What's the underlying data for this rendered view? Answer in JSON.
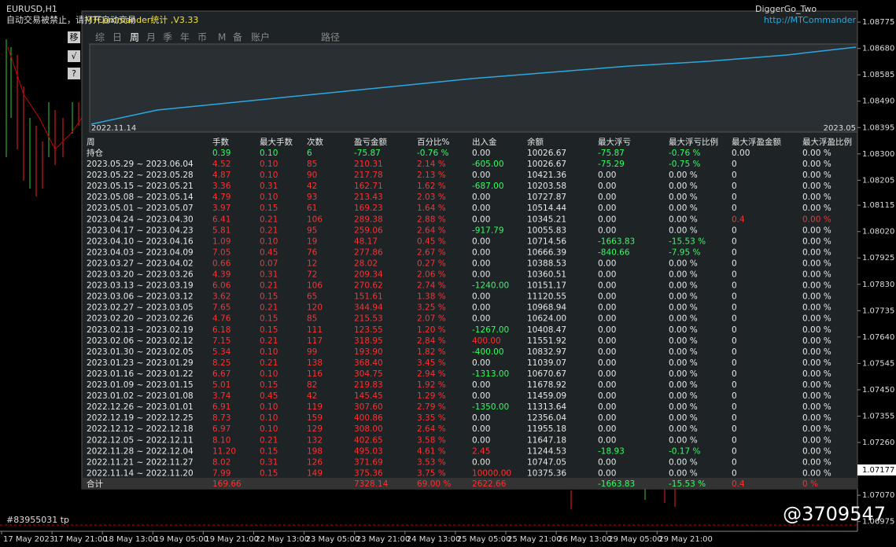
{
  "symbol": "EURUSD,H1",
  "warning": "自动交易被禁止，请打开自动交易",
  "panel": {
    "title": "MTCommander统计 ,V3.33",
    "link": "http://MTCommander",
    "ea": "DiggerGo_Two",
    "side_buttons": [
      "移",
      "√",
      "?"
    ],
    "tabs": [
      "综",
      "日",
      "周",
      "月",
      "季",
      "年",
      "币",
      "M",
      "备",
      "账户",
      "路径"
    ],
    "curve_start": "2022.11.14",
    "curve_end": "2023.05"
  },
  "table": {
    "header": [
      "周",
      "手数",
      "最大手数",
      "次数",
      "盈亏金额",
      "百分比%",
      "出入金",
      "余额",
      "最大浮亏",
      "最大浮亏比例",
      "最大浮盈金额",
      "最大浮盈比例"
    ],
    "position": [
      "持仓",
      "0.39",
      "0.10",
      "6",
      "-75.87",
      "-0.76 %",
      "0.00",
      "10026.67",
      "-75.87",
      "-0.76 %",
      "0.00",
      "0.00 %"
    ],
    "rows": [
      [
        "2023.05.29 ~ 2023.06.04",
        "4.52",
        "0.10",
        "85",
        "210.31",
        "2.14 %",
        "-605.00",
        "10026.67",
        "-75.29",
        "-0.75 %",
        "0",
        "0.00 %"
      ],
      [
        "2023.05.22 ~ 2023.05.28",
        "4.87",
        "0.10",
        "90",
        "217.78",
        "2.13 %",
        "0.00",
        "10421.36",
        "0.00",
        "0.00 %",
        "0",
        "0.00 %"
      ],
      [
        "2023.05.15 ~ 2023.05.21",
        "3.36",
        "0.31",
        "42",
        "162.71",
        "1.62 %",
        "-687.00",
        "10203.58",
        "0.00",
        "0.00 %",
        "0",
        "0.00 %"
      ],
      [
        "2023.05.08 ~ 2023.05.14",
        "4.79",
        "0.10",
        "93",
        "213.43",
        "2.03 %",
        "0.00",
        "10727.87",
        "0.00",
        "0.00 %",
        "0",
        "0.00 %"
      ],
      [
        "2023.05.01 ~ 2023.05.07",
        "3.97",
        "0.15",
        "61",
        "169.23",
        "1.64 %",
        "0.00",
        "10514.44",
        "0.00",
        "0.00 %",
        "0",
        "0.00 %"
      ],
      [
        "2023.04.24 ~ 2023.04.30",
        "6.41",
        "0.21",
        "106",
        "289.38",
        "2.88 %",
        "0.00",
        "10345.21",
        "0.00",
        "0.00 %",
        "0.4",
        "0.00 %"
      ],
      [
        "2023.04.17 ~ 2023.04.23",
        "5.81",
        "0.21",
        "95",
        "259.06",
        "2.64 %",
        "-917.79",
        "10055.83",
        "0.00",
        "0.00 %",
        "0",
        "0.00 %"
      ],
      [
        "2023.04.10 ~ 2023.04.16",
        "1.09",
        "0.10",
        "19",
        "48.17",
        "0.45 %",
        "0.00",
        "10714.56",
        "-1663.83",
        "-15.53 %",
        "0",
        "0.00 %"
      ],
      [
        "2023.04.03 ~ 2023.04.09",
        "7.05",
        "0.45",
        "76",
        "277.86",
        "2.67 %",
        "0.00",
        "10666.39",
        "-840.66",
        "-7.95 %",
        "0",
        "0.00 %"
      ],
      [
        "2023.03.27 ~ 2023.04.02",
        "0.66",
        "0.07",
        "12",
        "28.02",
        "0.27 %",
        "0.00",
        "10388.53",
        "0.00",
        "0.00 %",
        "0",
        "0.00 %"
      ],
      [
        "2023.03.20 ~ 2023.03.26",
        "4.39",
        "0.31",
        "72",
        "209.34",
        "2.06 %",
        "0.00",
        "10360.51",
        "0.00",
        "0.00 %",
        "0",
        "0.00 %"
      ],
      [
        "2023.03.13 ~ 2023.03.19",
        "6.06",
        "0.21",
        "106",
        "270.62",
        "2.74 %",
        "-1240.00",
        "10151.17",
        "0.00",
        "0.00 %",
        "0",
        "0.00 %"
      ],
      [
        "2023.03.06 ~ 2023.03.12",
        "3.62",
        "0.15",
        "65",
        "151.61",
        "1.38 %",
        "0.00",
        "11120.55",
        "0.00",
        "0.00 %",
        "0",
        "0.00 %"
      ],
      [
        "2023.02.27 ~ 2023.03.05",
        "7.65",
        "0.21",
        "120",
        "344.94",
        "3.25 %",
        "0.00",
        "10968.94",
        "0.00",
        "0.00 %",
        "0",
        "0.00 %"
      ],
      [
        "2023.02.20 ~ 2023.02.26",
        "4.76",
        "0.15",
        "85",
        "215.53",
        "2.07 %",
        "0.00",
        "10624.00",
        "0.00",
        "0.00 %",
        "0",
        "0.00 %"
      ],
      [
        "2023.02.13 ~ 2023.02.19",
        "6.18",
        "0.15",
        "111",
        "123.55",
        "1.20 %",
        "-1267.00",
        "10408.47",
        "0.00",
        "0.00 %",
        "0",
        "0.00 %"
      ],
      [
        "2023.02.06 ~ 2023.02.12",
        "7.15",
        "0.21",
        "117",
        "318.95",
        "2.84 %",
        "400.00",
        "11551.92",
        "0.00",
        "0.00 %",
        "0",
        "0.00 %"
      ],
      [
        "2023.01.30 ~ 2023.02.05",
        "5.34",
        "0.10",
        "99",
        "193.90",
        "1.82 %",
        "-400.00",
        "10832.97",
        "0.00",
        "0.00 %",
        "0",
        "0.00 %"
      ],
      [
        "2023.01.23 ~ 2023.01.29",
        "8.25",
        "0.21",
        "138",
        "368.40",
        "3.45 %",
        "0.00",
        "11039.07",
        "0.00",
        "0.00 %",
        "0",
        "0.00 %"
      ],
      [
        "2023.01.16 ~ 2023.01.22",
        "6.67",
        "0.10",
        "116",
        "304.75",
        "2.94 %",
        "-1313.00",
        "10670.67",
        "0.00",
        "0.00 %",
        "0",
        "0.00 %"
      ],
      [
        "2023.01.09 ~ 2023.01.15",
        "5.01",
        "0.15",
        "82",
        "219.83",
        "1.92 %",
        "0.00",
        "11678.92",
        "0.00",
        "0.00 %",
        "0",
        "0.00 %"
      ],
      [
        "2023.01.02 ~ 2023.01.08",
        "3.74",
        "0.45",
        "42",
        "145.45",
        "1.29 %",
        "0.00",
        "11459.09",
        "0.00",
        "0.00 %",
        "0",
        "0.00 %"
      ],
      [
        "2022.12.26 ~ 2023.01.01",
        "6.91",
        "0.10",
        "119",
        "307.60",
        "2.79 %",
        "-1350.00",
        "11313.64",
        "0.00",
        "0.00 %",
        "0",
        "0.00 %"
      ],
      [
        "2022.12.19 ~ 2022.12.25",
        "8.73",
        "0.10",
        "159",
        "400.86",
        "3.35 %",
        "0.00",
        "12356.04",
        "0.00",
        "0.00 %",
        "0",
        "0.00 %"
      ],
      [
        "2022.12.12 ~ 2022.12.18",
        "6.97",
        "0.10",
        "129",
        "308.00",
        "2.64 %",
        "0.00",
        "11955.18",
        "0.00",
        "0.00 %",
        "0",
        "0.00 %"
      ],
      [
        "2022.12.05 ~ 2022.12.11",
        "8.10",
        "0.21",
        "132",
        "402.65",
        "3.58 %",
        "0.00",
        "11647.18",
        "0.00",
        "0.00 %",
        "0",
        "0.00 %"
      ],
      [
        "2022.11.28 ~ 2022.12.04",
        "11.20",
        "0.15",
        "198",
        "495.03",
        "4.61 %",
        "2.45",
        "11244.53",
        "-18.93",
        "-0.17 %",
        "0",
        "0.00 %"
      ],
      [
        "2022.11.21 ~ 2022.11.27",
        "8.02",
        "0.31",
        "126",
        "371.69",
        "3.53 %",
        "0.00",
        "10747.05",
        "0.00",
        "0.00 %",
        "0",
        "0.00 %"
      ],
      [
        "2022.11.14 ~ 2022.11.20",
        "7.99",
        "0.15",
        "149",
        "375.36",
        "3.75 %",
        "10000.00",
        "10375.36",
        "0.00",
        "0.00 %",
        "0",
        "0.00 %"
      ]
    ],
    "total": [
      "合计",
      "169.66",
      null,
      null,
      "7328.14",
      "69.00 %",
      "2622.66",
      null,
      "-1663.83",
      "-15.53 %",
      "0.4",
      "0 %"
    ]
  },
  "price_axis": {
    "ylim": [
      1.0694,
      1.08815
    ],
    "yticks": [
      {
        "value": 1.08775,
        "label": "1.08775"
      },
      {
        "value": 1.0868,
        "label": "1.08680"
      },
      1.08585,
      {
        "value": 1.0849,
        "label": "1.08490"
      },
      1.08395,
      {
        "value": 1.083,
        "label": "1.08300"
      },
      1.08205,
      1.08115,
      {
        "value": 1.0802,
        "label": "1.08020"
      },
      1.07925,
      {
        "value": 1.0783,
        "label": "1.07830"
      },
      1.07735,
      {
        "value": 1.0764,
        "label": "1.07640"
      },
      1.07545,
      {
        "value": 1.0745,
        "label": "1.07450"
      },
      1.07355,
      {
        "value": 1.0726,
        "label": "1.07260"
      },
      {
        "value": 1.0707,
        "label": "1.07070"
      },
      1.06975
    ],
    "current": 1.07177
  },
  "time_axis": [
    "17 May 2023",
    "17 May 21:00",
    "18 May 13:00",
    "19 May 05:00",
    "19 May 21:00",
    "22 May 13:00",
    "23 May 05:00",
    "23 May 21:00",
    "24 May 13:00",
    "25 May 05:00",
    "25 May 21:00",
    "26 May 13:00",
    "29 May 05:00",
    "29 May 21:00"
  ],
  "order_label": "#83955031 tp",
  "watermark": "@3709547"
}
